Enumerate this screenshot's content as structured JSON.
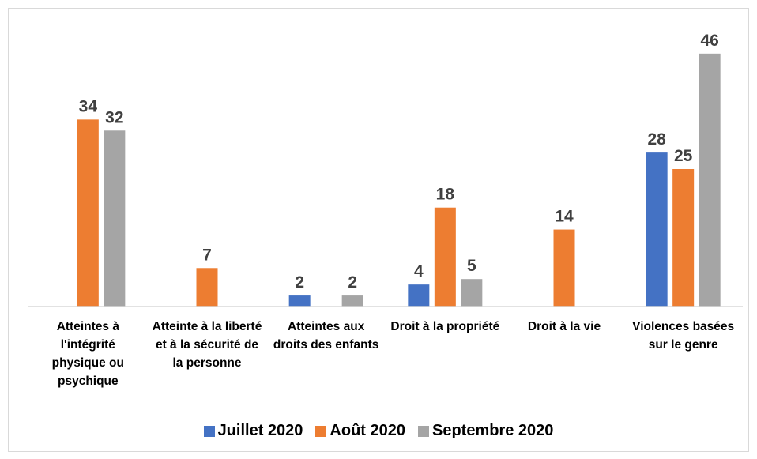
{
  "chart_data": {
    "type": "bar",
    "categories": [
      "Atteintes à l'intégrité physique ou psychique",
      "Atteinte à la liberté et à la sécurité de la personne",
      "Atteintes aux droits des enfants",
      "Droit à la propriété",
      "Droit à la vie",
      "Violences basées sur le genre"
    ],
    "series": [
      {
        "name": "Juillet 2020",
        "color": "#4472c4",
        "values": [
          null,
          null,
          2,
          4,
          null,
          28
        ]
      },
      {
        "name": "Août 2020",
        "color": "#ed7d31",
        "values": [
          34,
          7,
          null,
          18,
          14,
          25
        ]
      },
      {
        "name": "Septembre 2020",
        "color": "#a5a5a5",
        "values": [
          32,
          null,
          2,
          5,
          null,
          46
        ]
      }
    ],
    "ylim": [
      0,
      50
    ],
    "legend": "bottom"
  }
}
